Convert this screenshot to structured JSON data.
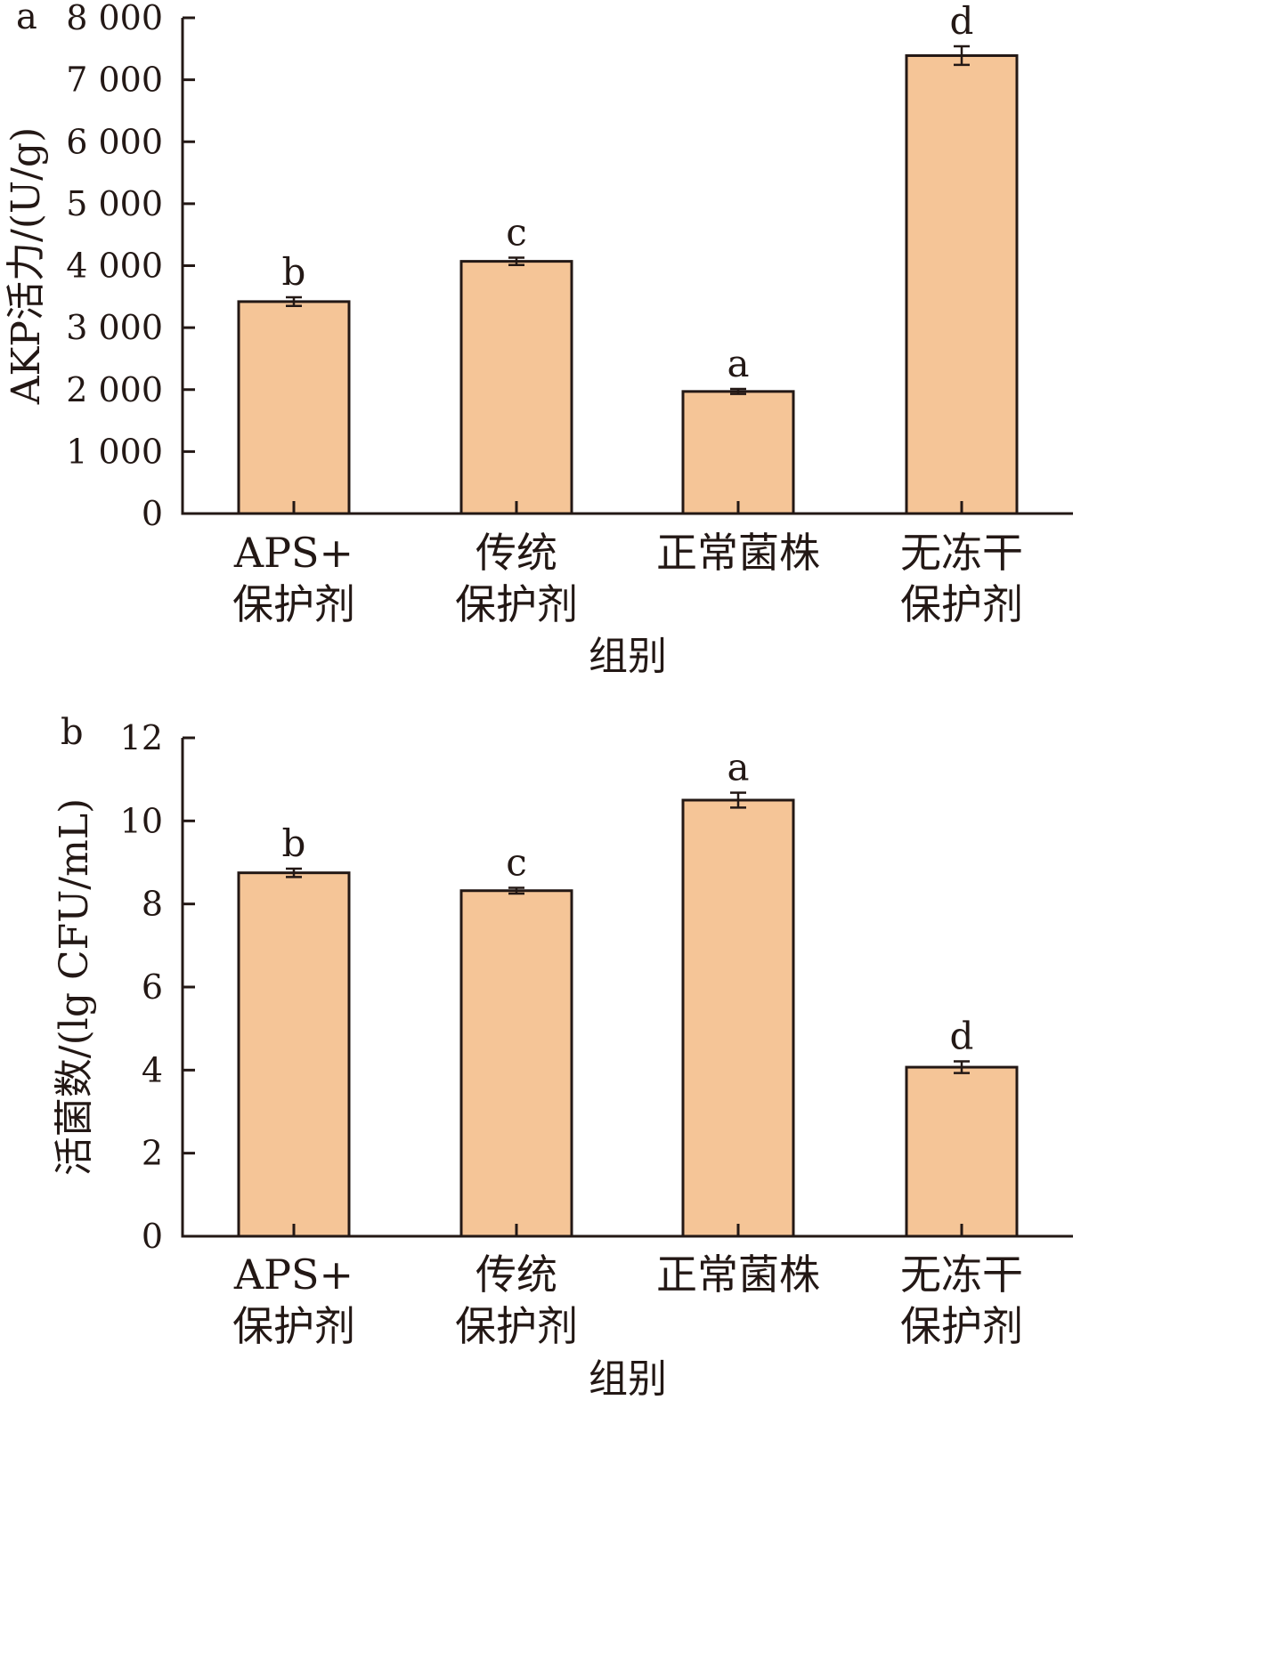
{
  "chart_data": [
    {
      "type": "bar",
      "panel_label": "a",
      "categories": [
        [
          "APS+",
          "保护剂"
        ],
        [
          "传统",
          "保护剂"
        ],
        [
          "正常菌株"
        ],
        [
          "无冻干",
          "保护剂"
        ]
      ],
      "values": [
        3420,
        4070,
        1970,
        7390
      ],
      "errors": [
        70,
        60,
        40,
        150
      ],
      "significance": [
        "b",
        "c",
        "a",
        "d"
      ],
      "y_ticks": [
        0,
        1000,
        2000,
        3000,
        4000,
        5000,
        6000,
        7000,
        8000
      ],
      "y_tick_labels": [
        "0",
        "1 000",
        "2 000",
        "3 000",
        "4 000",
        "5 000",
        "6 000",
        "7 000",
        "8 000"
      ],
      "ylim": [
        0,
        8000
      ],
      "xlabel": "组别",
      "ylabel": "AKP活力/(U/g)",
      "bar_color": "#f5c597"
    },
    {
      "type": "bar",
      "panel_label": "b",
      "categories": [
        [
          "APS+",
          "保护剂"
        ],
        [
          "传统",
          "保护剂"
        ],
        [
          "正常菌株"
        ],
        [
          "无冻干",
          "保护剂"
        ]
      ],
      "values": [
        8.75,
        8.32,
        10.5,
        4.07
      ],
      "errors": [
        0.1,
        0.07,
        0.18,
        0.14
      ],
      "significance": [
        "b",
        "c",
        "a",
        "d"
      ],
      "y_ticks": [
        0,
        2,
        4,
        6,
        8,
        10,
        12
      ],
      "y_tick_labels": [
        "0",
        "2",
        "4",
        "6",
        "8",
        "10",
        "12"
      ],
      "ylim": [
        0,
        12
      ],
      "xlabel": "组别",
      "ylabel": "活菌数/(lg CFU/mL)",
      "bar_color": "#f5c597"
    }
  ]
}
